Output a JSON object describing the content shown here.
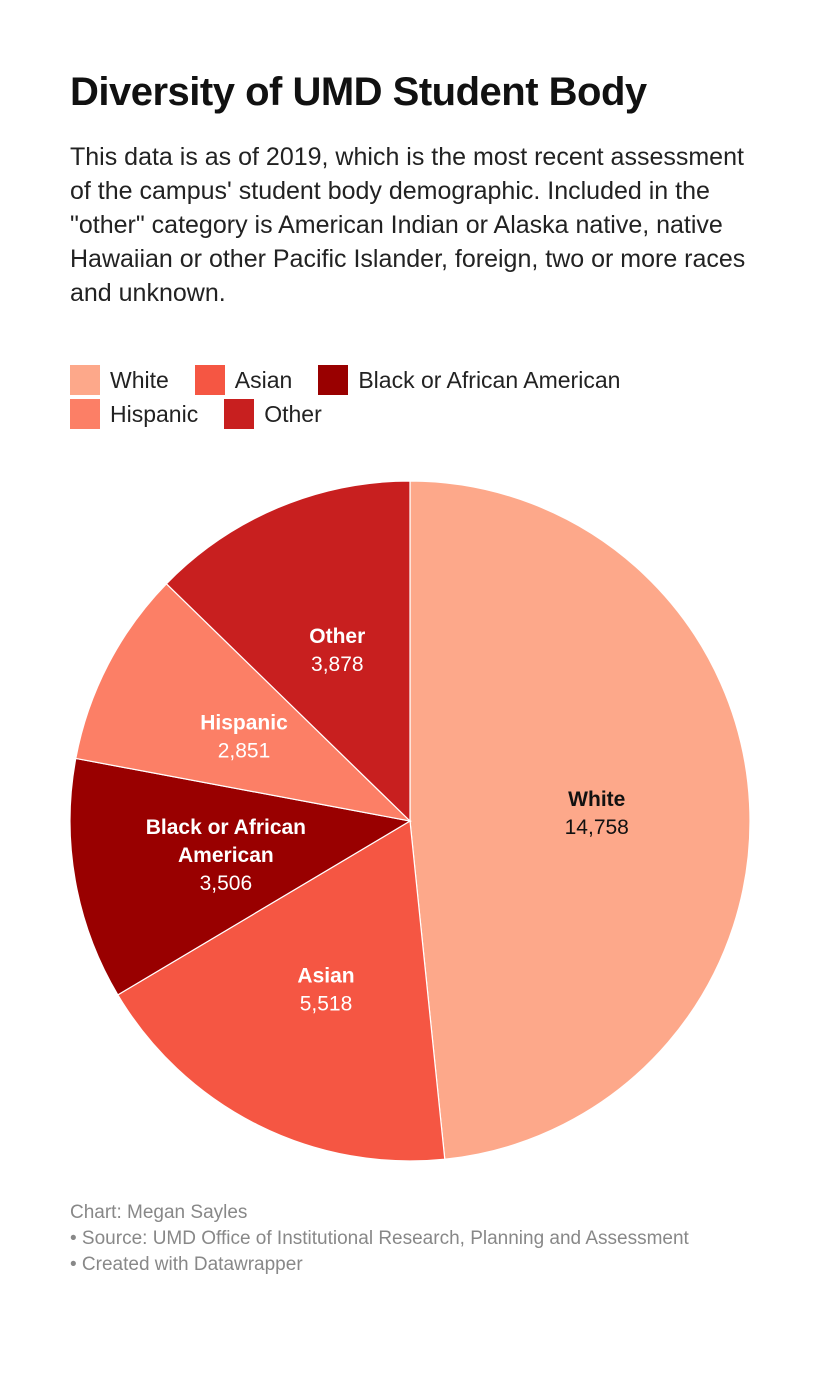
{
  "title": "Diversity of UMD Student Body",
  "description": "This data is as of 2019, which is the most recent assessment of the campus' student body demographic. Included in the \"other\" category is American Indian or Alaska native, native Hawaiian or other Pacific Islander, foreign, two or more races and unknown.",
  "chart_data": {
    "type": "pie",
    "title": "Diversity of UMD Student Body",
    "start_angle": "12 o'clock, clockwise",
    "slices": [
      {
        "label": "White",
        "value": 14758,
        "display": "14,758",
        "color": "#fda88a",
        "label_color": "#111111",
        "label_lines": [
          "White"
        ]
      },
      {
        "label": "Asian",
        "value": 5518,
        "display": "5,518",
        "color": "#f55643",
        "label_color": "#ffffff",
        "label_lines": [
          "Asian"
        ]
      },
      {
        "label": "Black or African American",
        "value": 3506,
        "display": "3,506",
        "color": "#990000",
        "label_color": "#ffffff",
        "label_lines": [
          "Black or African",
          "American"
        ]
      },
      {
        "label": "Hispanic",
        "value": 2851,
        "display": "2,851",
        "color": "#fc7f66",
        "label_color": "#ffffff",
        "label_lines": [
          "Hispanic"
        ]
      },
      {
        "label": "Other",
        "value": 3878,
        "display": "3,878",
        "color": "#c81f1f",
        "label_color": "#ffffff",
        "label_lines": [
          "Other"
        ]
      }
    ]
  },
  "legend": {
    "rows": [
      [
        {
          "label": "White",
          "color": "#fda88a"
        },
        {
          "label": "Asian",
          "color": "#f55643"
        },
        {
          "label": "Black or African American",
          "color": "#990000"
        }
      ],
      [
        {
          "label": "Hispanic",
          "color": "#fc7f66"
        },
        {
          "label": "Other",
          "color": "#c81f1f"
        }
      ]
    ]
  },
  "footer": {
    "credit": "Chart: Megan Sayles",
    "source": "• Source: UMD Office of Institutional Research, Planning and Assessment",
    "tool": "• Created with Datawrapper"
  }
}
